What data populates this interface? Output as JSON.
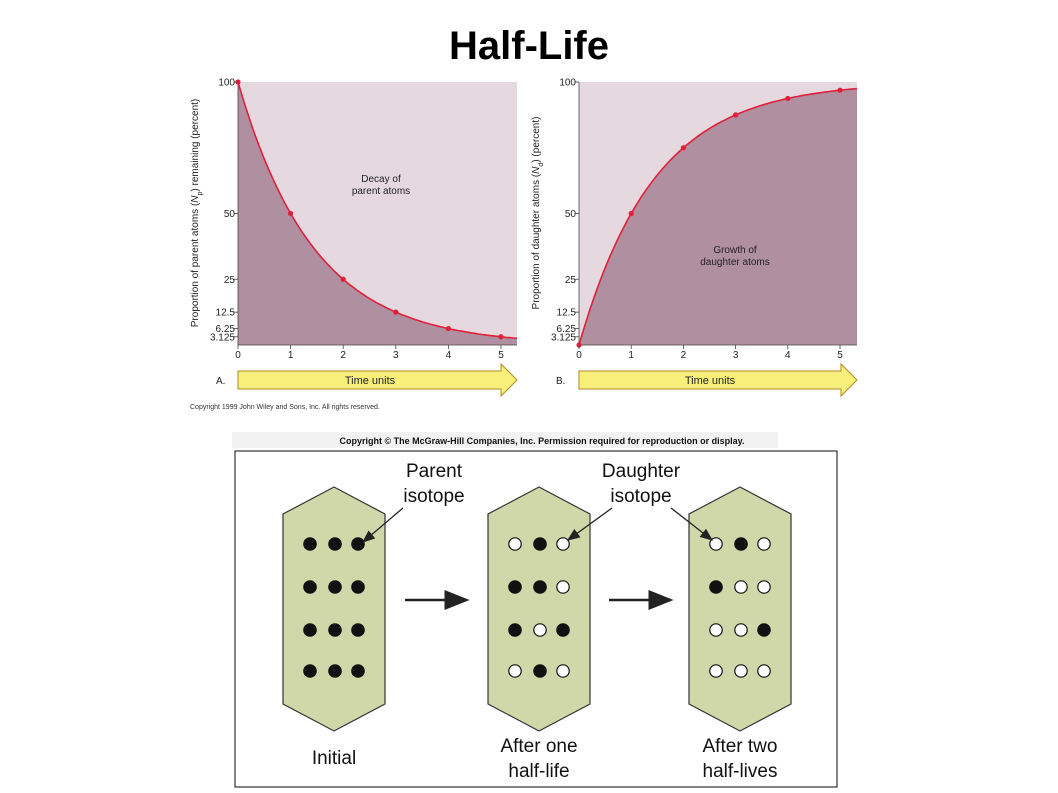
{
  "title": "Half-Life",
  "colors": {
    "curve": "#e0203a",
    "fill_under": "#b08fa0",
    "fill_over": "#e5d9df",
    "arrow": "#f7ef7a",
    "tablet": "#d0d7a8"
  },
  "chart_data": [
    {
      "type": "line",
      "panel_label": "A.",
      "x": [
        0,
        1,
        2,
        3,
        4,
        5
      ],
      "y": [
        100,
        50,
        25,
        12.5,
        6.25,
        3.125
      ],
      "xticks": [
        "0",
        "1",
        "2",
        "3",
        "4",
        "5"
      ],
      "yticks": [
        "100",
        "50",
        "25",
        "12.5",
        "6.25",
        "3.125"
      ],
      "ylabel_pre": "Proportion of parent atoms (",
      "ylabel_sym": "N",
      "ylabel_sub": "p",
      "ylabel_post": ") remaining (percent)",
      "annotation": [
        "Decay of",
        "parent atoms"
      ],
      "xlabel": "Time units",
      "ylim": [
        0,
        100
      ],
      "xlim": [
        0,
        5.3
      ]
    },
    {
      "type": "line",
      "panel_label": "B.",
      "x": [
        0,
        1,
        2,
        3,
        4,
        5
      ],
      "y": [
        0,
        50,
        75,
        87.5,
        93.75,
        96.875
      ],
      "xticks": [
        "0",
        "1",
        "2",
        "3",
        "4",
        "5"
      ],
      "yticks": [
        "100",
        "50",
        "25",
        "12.5",
        "6.25",
        "3.125"
      ],
      "ylabel_pre": "Proportion of daughter atoms (",
      "ylabel_sym": "N",
      "ylabel_sub": "d",
      "ylabel_post": ") (percent)",
      "annotation": [
        "Growth of",
        "daughter atoms"
      ],
      "xlabel": "Time units",
      "ylim": [
        0,
        100
      ],
      "xlim": [
        0,
        5.3
      ]
    }
  ],
  "copyright_wiley": "Copyright 1999 John Wiley and Sons, Inc. All rights reserved.",
  "copyright_mcgraw": "Copyright © The McGraw-Hill Companies, Inc. Permission required for reproduction or display.",
  "diagram": {
    "parent_label": [
      "Parent",
      "isotope"
    ],
    "daughter_label": [
      "Daughter",
      "isotope"
    ],
    "tablets": [
      {
        "caption": [
          "Initial"
        ],
        "dots": [
          [
            1,
            1,
            1
          ],
          [
            1,
            1,
            1
          ],
          [
            1,
            1,
            1
          ],
          [
            1,
            1,
            1
          ]
        ]
      },
      {
        "caption": [
          "After one",
          "half-life"
        ],
        "dots": [
          [
            0,
            1,
            0
          ],
          [
            1,
            1,
            0
          ],
          [
            1,
            0,
            1
          ],
          [
            0,
            1,
            0
          ]
        ]
      },
      {
        "caption": [
          "After two",
          "half-lives"
        ],
        "dots": [
          [
            0,
            1,
            0
          ],
          [
            1,
            0,
            0
          ],
          [
            0,
            0,
            1
          ],
          [
            0,
            0,
            0
          ]
        ]
      }
    ]
  }
}
